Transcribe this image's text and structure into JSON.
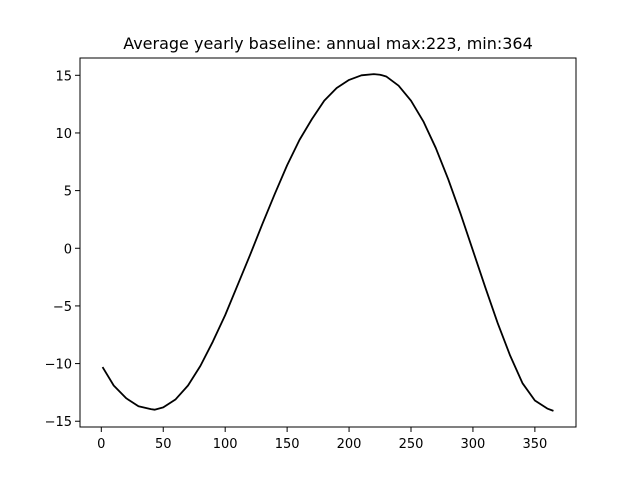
{
  "chart_data": {
    "type": "line",
    "title": "Average yearly baseline: annual max:223, min:364",
    "xlabel": "",
    "ylabel": "",
    "xlim": [
      -17.2,
      383.2
    ],
    "ylim": [
      -15.5,
      16.5
    ],
    "xticks": [
      0,
      50,
      100,
      150,
      200,
      250,
      300,
      350
    ],
    "xtick_labels": [
      "0",
      "50",
      "100",
      "150",
      "200",
      "250",
      "300",
      "350"
    ],
    "yticks": [
      -15,
      -10,
      -5,
      0,
      5,
      10,
      15
    ],
    "ytick_labels": [
      "−15",
      "−10",
      "−5",
      "0",
      "5",
      "10",
      "15"
    ],
    "grid": false,
    "series": [
      {
        "color": "#000000",
        "x": [
          1,
          10,
          20,
          30,
          40,
          43,
          50,
          60,
          70,
          80,
          90,
          100,
          110,
          120,
          130,
          140,
          150,
          160,
          170,
          180,
          190,
          200,
          210,
          220,
          225,
          230,
          240,
          250,
          260,
          270,
          280,
          290,
          300,
          310,
          320,
          330,
          340,
          350,
          360,
          365
        ],
        "y": [
          -10.3,
          -11.9,
          -13.0,
          -13.7,
          -13.95,
          -14.0,
          -13.8,
          -13.1,
          -11.9,
          -10.2,
          -8.1,
          -5.8,
          -3.2,
          -0.6,
          2.1,
          4.7,
          7.2,
          9.4,
          11.2,
          12.8,
          13.9,
          14.6,
          15.0,
          15.1,
          15.05,
          14.9,
          14.1,
          12.8,
          11.0,
          8.7,
          6.0,
          3.0,
          -0.2,
          -3.4,
          -6.5,
          -9.3,
          -11.7,
          -13.2,
          -13.9,
          -14.1
        ]
      }
    ]
  }
}
